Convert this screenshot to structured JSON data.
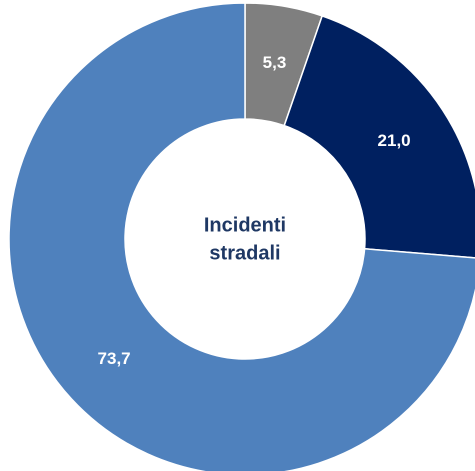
{
  "chart_data": {
    "type": "doughnut",
    "values": [
      5.3,
      21.0,
      73.7
    ],
    "value_labels": [
      "5,3",
      "21,0",
      "73,7"
    ],
    "colors": [
      "#7f7f7f",
      "#002060",
      "#4f81bd"
    ],
    "center_label": [
      "Incidenti",
      "stradali"
    ]
  }
}
